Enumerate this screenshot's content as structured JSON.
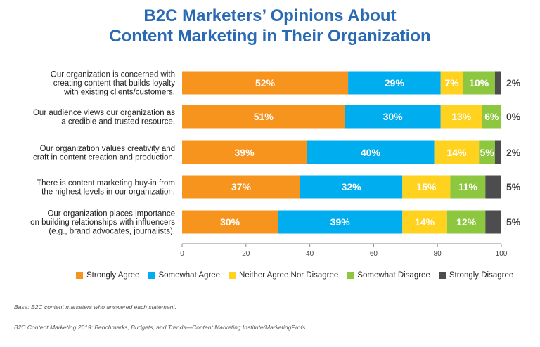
{
  "title_lines": [
    "B2C Marketers’ Opinions About",
    "Content Marketing in Their Organization"
  ],
  "chart_data": {
    "type": "bar",
    "orientation": "horizontal",
    "stacked": true,
    "title": "B2C Marketers’ Opinions About Content Marketing in Their Organization",
    "categories": [
      [
        "Our organization is concerned with",
        "creating content that builds loyalty",
        "with existing clients/customers."
      ],
      [
        "Our audience views our organization as",
        "a credible and trusted resource."
      ],
      [
        "Our organization values creativity and",
        "craft in content creation and production."
      ],
      [
        "There is content marketing buy-in from",
        "the highest levels in our organization."
      ],
      [
        "Our organization places importance",
        "on building relationships with influencers",
        "(e.g., brand advocates, journalists)."
      ]
    ],
    "series": [
      {
        "name": "Strongly Agree",
        "color": "#f7941e",
        "text_color": "#ffffff",
        "values": [
          52,
          51,
          39,
          37,
          30
        ]
      },
      {
        "name": "Somewhat Agree",
        "color": "#00aeef",
        "text_color": "#ffffff",
        "values": [
          29,
          30,
          40,
          32,
          39
        ]
      },
      {
        "name": "Neither Agree Nor Disagree",
        "color": "#ffd21f",
        "text_color": "#ffffff",
        "values": [
          7,
          13,
          14,
          15,
          14
        ]
      },
      {
        "name": "Somewhat Disagree",
        "color": "#8dc63f",
        "text_color": "#ffffff",
        "values": [
          10,
          6,
          5,
          11,
          12
        ]
      },
      {
        "name": "Strongly Disagree",
        "color": "#4d4d4f",
        "text_color": "#3a3a3a",
        "values": [
          2,
          0,
          2,
          5,
          5
        ]
      }
    ],
    "ticks": [
      0,
      20,
      40,
      60,
      80,
      100
    ],
    "xlim": [
      0,
      100
    ],
    "legend_position": "bottom"
  },
  "footnotes": {
    "base": "Base: B2C content marketers who answered each statement.",
    "source": "B2C Content Marketing 2019: Benchmarks, Budgets, and Trends—Content Marketing Institute/MarketingProfs"
  }
}
